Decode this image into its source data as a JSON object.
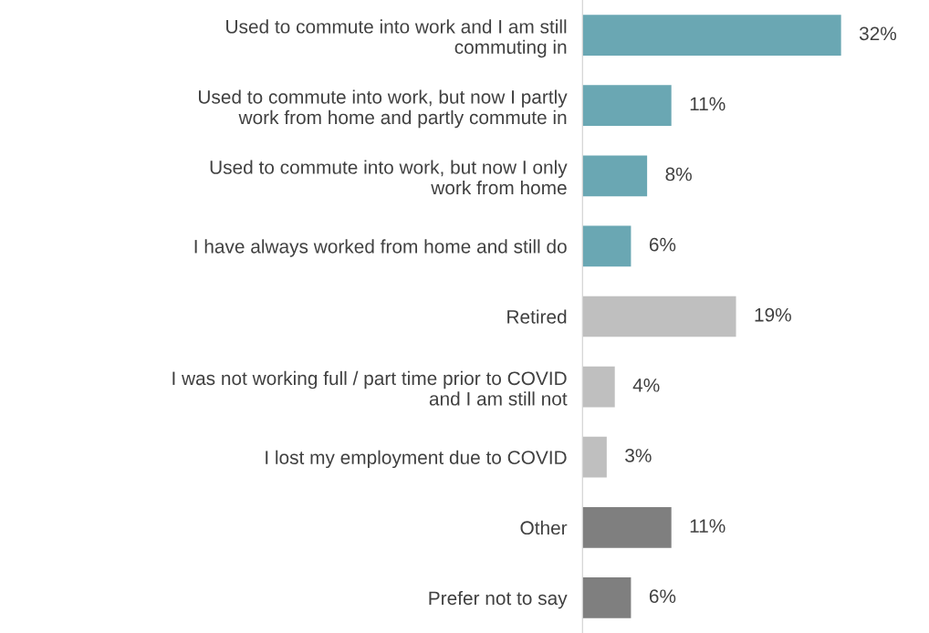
{
  "chart_data": {
    "type": "bar",
    "orientation": "horizontal",
    "categories": [
      "Used to commute into work and I am still\ncommuting in",
      "Used to commute into work, but now I partly\nwork from home and partly commute in",
      "Used to commute into work, but now I only\nwork from home",
      "I have always worked from home and still do",
      "Retired",
      "I was not working full / part time prior to COVID\nand I am still not",
      "I lost my employment due to COVID",
      "Other",
      "Prefer not to say"
    ],
    "values": [
      32,
      11,
      8,
      6,
      19,
      4,
      3,
      11,
      6
    ],
    "colors": [
      "#6aa7b3",
      "#6aa7b3",
      "#6aa7b3",
      "#6aa7b3",
      "#bfbfbf",
      "#bfbfbf",
      "#bfbfbf",
      "#7f7f7f",
      "#7f7f7f"
    ],
    "value_labels": [
      "32%",
      "11%",
      "8%",
      "6%",
      "19%",
      "4%",
      "3%",
      "11%",
      "6%"
    ],
    "grid": false,
    "legend": false
  }
}
